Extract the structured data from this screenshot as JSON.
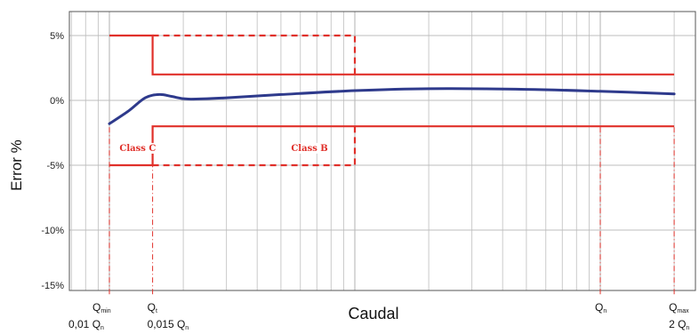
{
  "chart_data": {
    "type": "line",
    "xlabel": "Caudal",
    "ylabel": "Error %",
    "ylim": [
      -15,
      7
    ],
    "yticks": [
      {
        "value": 5,
        "label": "5%"
      },
      {
        "value": 0,
        "label": "0%"
      },
      {
        "value": -5,
        "label": "-5%"
      },
      {
        "value": -10,
        "label": "-10%"
      },
      {
        "value": -15,
        "label": "-15%"
      }
    ],
    "xscale": "log",
    "xlim_in_Qn": [
      0.003,
      5
    ],
    "grid": true,
    "series": [
      {
        "name": "",
        "color": "#2e3a8c",
        "style": "solid",
        "points": [
          [
            0.01,
            -1.8
          ],
          [
            0.012,
            -0.8
          ],
          [
            0.014,
            0.2
          ],
          [
            0.016,
            0.45
          ],
          [
            0.018,
            0.3
          ],
          [
            0.021,
            0.1
          ],
          [
            0.03,
            0.2
          ],
          [
            0.05,
            0.45
          ],
          [
            0.1,
            0.75
          ],
          [
            0.2,
            0.9
          ],
          [
            0.5,
            0.85
          ],
          [
            1,
            0.7
          ],
          [
            2,
            0.5
          ]
        ]
      },
      {
        "name": "Class C",
        "color": "#e0302a",
        "style": "solid",
        "upper": [
          [
            0.01,
            5
          ],
          [
            0.015,
            5
          ],
          [
            0.015,
            2
          ],
          [
            2,
            2
          ]
        ],
        "lower": [
          [
            0.01,
            -5
          ],
          [
            0.015,
            -5
          ],
          [
            0.015,
            -2
          ],
          [
            2,
            -2
          ]
        ]
      },
      {
        "name": "Class B",
        "color": "#e0302a",
        "style": "dashed",
        "upper": [
          [
            0.015,
            5
          ],
          [
            0.1,
            5
          ],
          [
            0.1,
            2
          ]
        ],
        "lower": [
          [
            0.015,
            -5
          ],
          [
            0.1,
            -5
          ],
          [
            0.1,
            -2
          ]
        ]
      }
    ],
    "annotations": [
      {
        "text": "Class C",
        "x": 0.011,
        "y": -3.9
      },
      {
        "text": "Class B",
        "x": 0.055,
        "y": -3.9
      }
    ],
    "markers": [
      {
        "at": 0.01,
        "name": "Q",
        "sub": "min",
        "second": "0,01 Q",
        "second_sub": "n"
      },
      {
        "at": 0.015,
        "name": "Q",
        "sub": "t",
        "second": "0,015 Q",
        "second_sub": "n"
      },
      {
        "at": 1,
        "name": "Q",
        "sub": "n",
        "second": "",
        "second_sub": ""
      },
      {
        "at": 2,
        "name": "Q",
        "sub": "max",
        "second": "2 Q",
        "second_sub": "n"
      }
    ],
    "colors": {
      "curve": "#2e3a8c",
      "limits": "#e0302a",
      "grid": "#bdbdbd"
    }
  }
}
